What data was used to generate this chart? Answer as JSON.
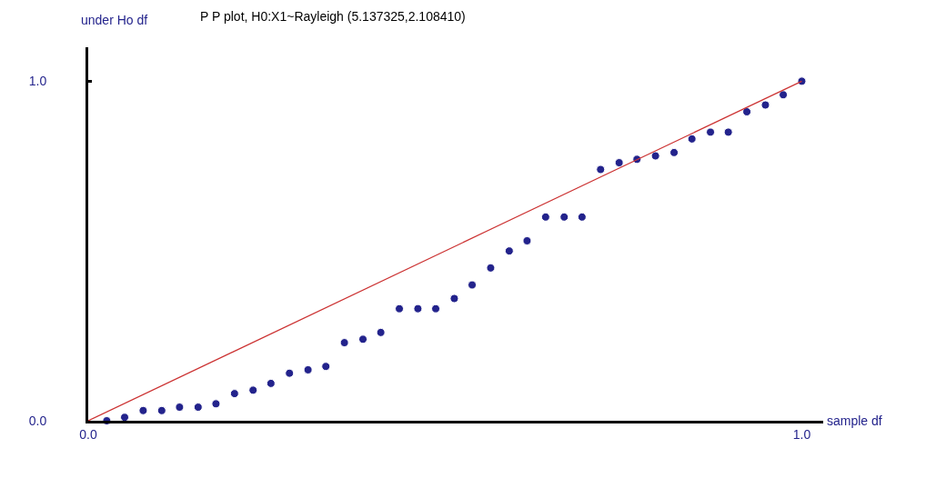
{
  "chart_data": {
    "type": "scatter",
    "title": "P P plot, H0:X1~Rayleigh (5.137325,2.108410)",
    "xlabel": "sample df",
    "ylabel": "under Ho df",
    "xlim": [
      0,
      1.03
    ],
    "ylim": [
      0,
      1.1
    ],
    "xticks": [
      {
        "value": 0,
        "label": "0.0"
      },
      {
        "value": 1,
        "label": "1.0"
      }
    ],
    "yticks": [
      {
        "value": 0,
        "label": "0.0"
      },
      {
        "value": 1,
        "label": "1.0"
      }
    ],
    "grid": false,
    "marker": "circle",
    "x": [
      0.026,
      0.051,
      0.077,
      0.103,
      0.128,
      0.154,
      0.179,
      0.205,
      0.231,
      0.256,
      0.282,
      0.308,
      0.333,
      0.359,
      0.385,
      0.41,
      0.436,
      0.462,
      0.487,
      0.513,
      0.538,
      0.564,
      0.59,
      0.615,
      0.641,
      0.667,
      0.692,
      0.718,
      0.744,
      0.769,
      0.795,
      0.821,
      0.846,
      0.872,
      0.897,
      0.923,
      0.949,
      0.974,
      1.0
    ],
    "series": [
      {
        "color": "#23238c",
        "values": [
          0.0,
          0.01,
          0.03,
          0.03,
          0.04,
          0.04,
          0.05,
          0.08,
          0.09,
          0.11,
          0.14,
          0.15,
          0.16,
          0.23,
          0.24,
          0.26,
          0.33,
          0.33,
          0.33,
          0.36,
          0.4,
          0.45,
          0.5,
          0.53,
          0.6,
          0.6,
          0.6,
          0.74,
          0.76,
          0.77,
          0.78,
          0.79,
          0.83,
          0.85,
          0.85,
          0.91,
          0.93,
          0.96,
          1.0
        ]
      },
      {
        "type": "line",
        "color": "#cc3333",
        "x": [
          0,
          1
        ],
        "values": [
          0,
          1
        ],
        "line_style": "solid",
        "marker": "none"
      }
    ]
  }
}
